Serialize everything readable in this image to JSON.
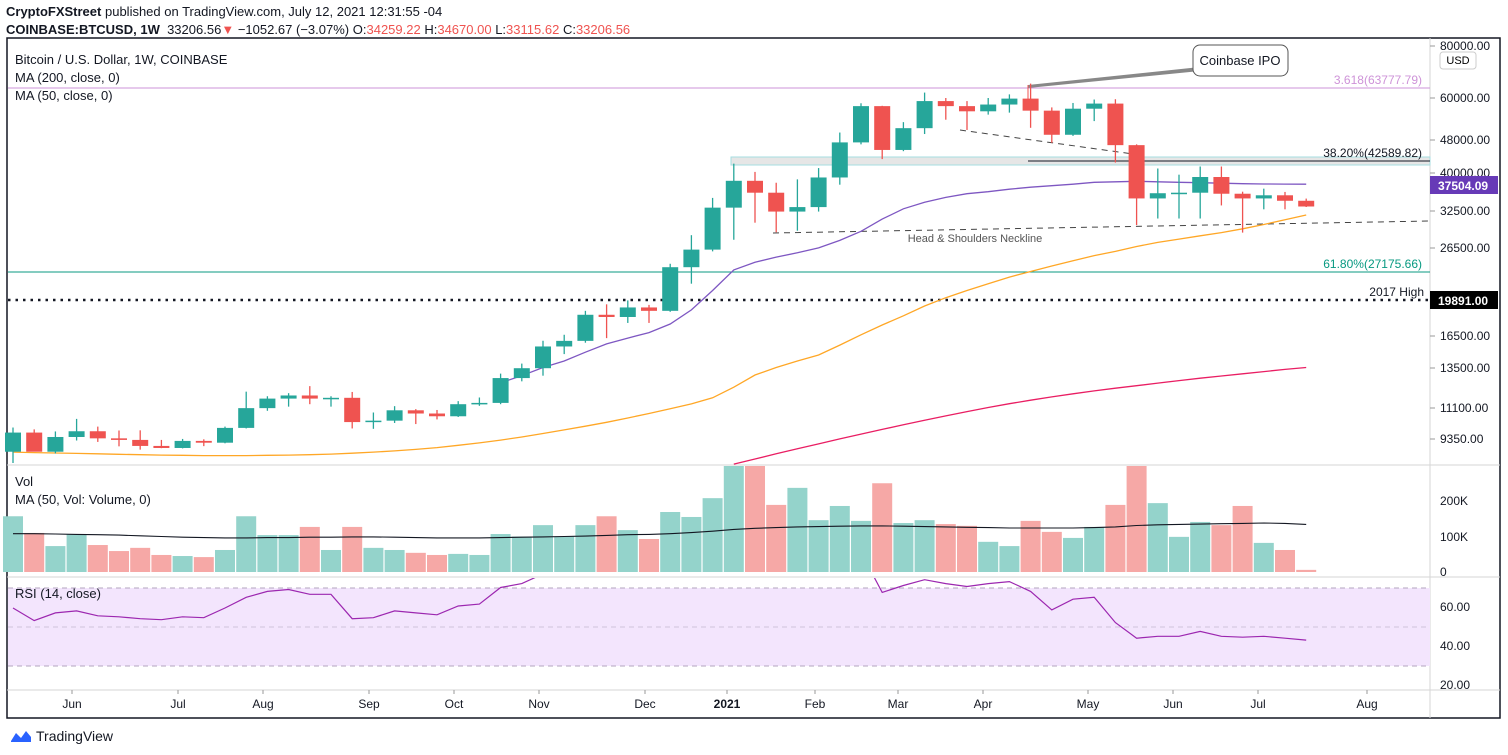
{
  "header": {
    "publisher": "CryptoFXStreet",
    "published_text": "published on TradingView.com, July 12, 2021 12:31:55 -04",
    "symbol": "COINBASE:BTCUSD, 1W",
    "last": "33206.56",
    "change": "−1052.67 (−3.07%)",
    "o_label": "O:",
    "o": "34259.22",
    "h_label": "H:",
    "h": "34670.00",
    "l_label": "L:",
    "l": "33115.62",
    "c_label": "C:",
    "c": "33206.56",
    "direction_icon": "triangle-down-icon"
  },
  "legend": {
    "title": "Bitcoin / U.S. Dollar, 1W, COINBASE",
    "ma200": "MA (200, close, 0)",
    "ma50": "MA (50, close, 0)",
    "vol": "Vol",
    "vol_ma": "MA (50, Vol: Volume, 0)",
    "rsi": "RSI (14, close)"
  },
  "annotations": {
    "coinbase_ipo": "Coinbase IPO",
    "fib_3618": "3.618(63777.79)",
    "fib_382": "38.20%(42589.82)",
    "fib_618": "61.80%(27175.66)",
    "high_2017": "2017 High",
    "neckline": "Head & Shoulders Neckline",
    "currency": "USD",
    "price_tag_ma": "37504.09",
    "price_tag_2017": "19891.00"
  },
  "axes": {
    "price_ticks": [
      "80000.00",
      "60000.00",
      "48000.00",
      "40000.00",
      "32500.00",
      "26500.00",
      "16500.00",
      "13500.00",
      "11100.00",
      "9350.00"
    ],
    "vol_ticks": [
      "200K",
      "100K",
      "0"
    ],
    "rsi_ticks": [
      "60.00",
      "40.00",
      "20.00"
    ],
    "time_ticks": [
      "Jun",
      "Jul",
      "Aug",
      "Sep",
      "Oct",
      "Nov",
      "Dec",
      "2021",
      "Feb",
      "Mar",
      "Apr",
      "May",
      "Jun",
      "Jul",
      "Aug"
    ]
  },
  "colors": {
    "up": "#26a69a",
    "down": "#ef5350",
    "vol_up": "#94d3cb",
    "vol_down": "#f6a8a6",
    "ma_purple": "#7e57c2",
    "ma50": "#ffa726",
    "ma200": "#e91e63",
    "rsi": "#9c27b0",
    "rsi_band": "#f3e5fd",
    "fib_3618": "#ce93d8",
    "fib_618": "#089981"
  },
  "chart_data": {
    "type": "candlestick",
    "interval": "1W",
    "scale": "log",
    "ohlc": [
      [
        8720,
        9950,
        8200,
        9680
      ],
      [
        9680,
        9850,
        8800,
        8720
      ],
      [
        8720,
        9740,
        8640,
        9450
      ],
      [
        9450,
        10430,
        9270,
        9750
      ],
      [
        9750,
        10000,
        9200,
        9380
      ],
      [
        9380,
        9790,
        8980,
        9300
      ],
      [
        9300,
        9800,
        8820,
        9000
      ],
      [
        9000,
        9300,
        8890,
        8900
      ],
      [
        8900,
        9350,
        8880,
        9250
      ],
      [
        9250,
        9330,
        8990,
        9160
      ],
      [
        9160,
        10000,
        9130,
        9930
      ],
      [
        9930,
        12100,
        9900,
        11060
      ],
      [
        11060,
        11800,
        10900,
        11650
      ],
      [
        11650,
        12000,
        11150,
        11850
      ],
      [
        11850,
        12470,
        11300,
        11650
      ],
      [
        11650,
        11800,
        11150,
        11700
      ],
      [
        11700,
        12080,
        9900,
        10250
      ],
      [
        10250,
        10800,
        9880,
        10330
      ],
      [
        10330,
        11180,
        10200,
        10930
      ],
      [
        10930,
        11000,
        10140,
        10740
      ],
      [
        10740,
        10950,
        10400,
        10580
      ],
      [
        10580,
        11490,
        10540,
        11300
      ],
      [
        11300,
        11720,
        11200,
        11380
      ],
      [
        11380,
        13350,
        11300,
        13030
      ],
      [
        13030,
        14100,
        12800,
        13750
      ],
      [
        13750,
        15970,
        13200,
        15480
      ],
      [
        15480,
        16500,
        14850,
        15960
      ],
      [
        15960,
        18800,
        15800,
        18400
      ],
      [
        18400,
        19480,
        16200,
        18180
      ],
      [
        18180,
        19900,
        17600,
        19150
      ],
      [
        19150,
        19420,
        17600,
        18800
      ],
      [
        18800,
        24300,
        18700,
        23850
      ],
      [
        23850,
        28400,
        21800,
        26250
      ],
      [
        26250,
        34800,
        26000,
        33000
      ],
      [
        33000,
        41950,
        27700,
        38200
      ],
      [
        38200,
        40100,
        30400,
        35800
      ],
      [
        35800,
        37800,
        28850,
        32300
      ],
      [
        32300,
        38500,
        29100,
        33100
      ],
      [
        33100,
        40950,
        32300,
        38900
      ],
      [
        38900,
        49700,
        37400,
        47100
      ],
      [
        47100,
        58300,
        46600,
        57400
      ],
      [
        57400,
        57500,
        43000,
        45200
      ],
      [
        45200,
        52600,
        44900,
        50900
      ],
      [
        50900,
        61800,
        49300,
        59000
      ],
      [
        59000,
        60000,
        53300,
        57400
      ],
      [
        57400,
        59000,
        50400,
        55800
      ],
      [
        55800,
        60000,
        54800,
        57900
      ],
      [
        57900,
        61200,
        55400,
        59800
      ],
      [
        59800,
        64900,
        51000,
        56000
      ],
      [
        56000,
        57000,
        47000,
        49100
      ],
      [
        49100,
        58400,
        48800,
        56600
      ],
      [
        56600,
        59500,
        52900,
        58200
      ],
      [
        58200,
        59600,
        42200,
        46400
      ],
      [
        46400,
        46600,
        30000,
        34700
      ],
      [
        34700,
        40850,
        31100,
        35700
      ],
      [
        35700,
        39500,
        31100,
        35800
      ],
      [
        35800,
        41300,
        31100,
        39000
      ],
      [
        39000,
        41300,
        33400,
        35600
      ],
      [
        35600,
        36000,
        28800,
        34700
      ],
      [
        34700,
        36600,
        32700,
        35300
      ],
      [
        35300,
        35950,
        32700,
        34260
      ],
      [
        34259.22,
        34670,
        33115.62,
        33206.56
      ]
    ],
    "volume_k": [
      157,
      110,
      73,
      107,
      76,
      59,
      68,
      48,
      45,
      42,
      62,
      157,
      104,
      104,
      127,
      62,
      127,
      68,
      62,
      54,
      48,
      51,
      48,
      107,
      100,
      132,
      100,
      132,
      157,
      118,
      93,
      169,
      155,
      208,
      310,
      300,
      189,
      237,
      146,
      186,
      144,
      250,
      138,
      146,
      135,
      130,
      85,
      73,
      144,
      113,
      96,
      127,
      189,
      320,
      194,
      99,
      141,
      132,
      186,
      82,
      62,
      6
    ],
    "volume_ma_k": [
      108,
      108,
      107,
      106,
      105,
      104,
      102,
      100,
      98,
      97,
      96,
      96,
      97,
      97,
      98,
      98,
      99,
      99,
      98,
      97,
      96,
      96,
      96,
      97,
      98,
      99,
      100,
      101,
      103,
      105,
      106,
      108,
      111,
      115,
      120,
      123,
      125,
      127,
      128,
      129,
      130,
      130,
      129,
      128,
      127,
      126,
      125,
      124,
      124,
      124,
      124,
      125,
      127,
      131,
      133,
      134,
      135,
      136,
      137,
      138,
      137,
      134
    ],
    "ma_purple": [
      null,
      null,
      null,
      null,
      null,
      null,
      null,
      null,
      null,
      null,
      null,
      null,
      null,
      null,
      null,
      null,
      null,
      null,
      null,
      null,
      null,
      null,
      null,
      12700,
      13200,
      13800,
      14300,
      15000,
      15700,
      16200,
      16700,
      17500,
      18900,
      21000,
      23500,
      24500,
      25200,
      25800,
      26500,
      27600,
      29000,
      31000,
      32800,
      34000,
      34900,
      35600,
      36000,
      36500,
      36900,
      37200,
      37500,
      37900,
      38000,
      38100,
      38000,
      37900,
      37800,
      37700,
      37600,
      37550,
      37520,
      37504.09
    ],
    "ma50": [
      8700,
      8680,
      8660,
      8640,
      8620,
      8600,
      8580,
      8560,
      8550,
      8540,
      8540,
      8540,
      8550,
      8560,
      8580,
      8610,
      8650,
      8700,
      8760,
      8830,
      8920,
      9030,
      9150,
      9290,
      9450,
      9630,
      9820,
      10020,
      10240,
      10480,
      10740,
      11020,
      11320,
      11700,
      12400,
      13250,
      13800,
      14300,
      14780,
      15600,
      16500,
      17400,
      18300,
      19300,
      20200,
      21000,
      21800,
      22600,
      23300,
      24000,
      24700,
      25400,
      26000,
      26700,
      27300,
      27800,
      28300,
      28800,
      29400,
      30100,
      30900,
      31700
    ],
    "ma200": [
      null,
      null,
      null,
      null,
      null,
      null,
      null,
      null,
      null,
      null,
      null,
      null,
      null,
      null,
      null,
      null,
      null,
      null,
      null,
      null,
      null,
      null,
      null,
      null,
      null,
      null,
      null,
      null,
      null,
      null,
      null,
      null,
      null,
      null,
      8150,
      8380,
      8620,
      8860,
      9100,
      9350,
      9600,
      9850,
      10100,
      10350,
      10600,
      10850,
      11100,
      11330,
      11550,
      11760,
      11960,
      12150,
      12330,
      12500,
      12680,
      12850,
      13020,
      13180,
      13340,
      13500,
      13660,
      13800
    ],
    "rsi": [
      59.5,
      53,
      57,
      58,
      55.5,
      55,
      54,
      53.5,
      55,
      54.5,
      59.5,
      65,
      68,
      69,
      66.5,
      66.5,
      54,
      54.5,
      58,
      57,
      56,
      60.5,
      61.5,
      70,
      72,
      77,
      78,
      83,
      80,
      82,
      80,
      86,
      89,
      92,
      93,
      82,
      76,
      76,
      80,
      85,
      88,
      67.5,
      71,
      74,
      72,
      70.5,
      72,
      73,
      68,
      58.5,
      64,
      65,
      52,
      44,
      45,
      45,
      47.5,
      45,
      44.5,
      45,
      44,
      43
    ],
    "levels": {
      "fib_3618": 63777.79,
      "fib_382": 42589.82,
      "fib_618": 27175.66,
      "high_2017": 19891.0
    },
    "rsi_bands": [
      30,
      50,
      70
    ]
  },
  "footer": {
    "brand": "TradingView"
  }
}
